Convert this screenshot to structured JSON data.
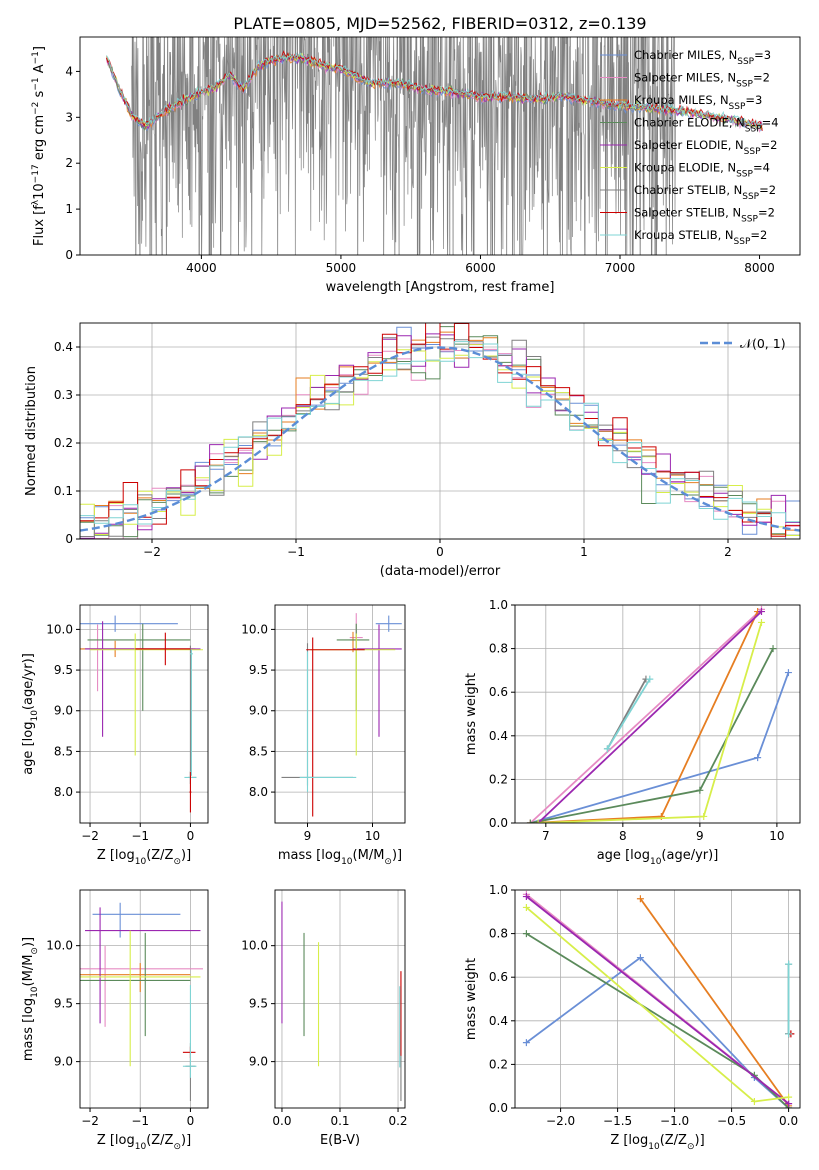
{
  "figure": {
    "title": "PLATE=0805, MJD=52562, FIBERID=0312, z=0.139"
  },
  "series_styles": [
    {
      "name_main": "Chabrier MILES, N",
      "sub": "SSP",
      "name_tail": "=3",
      "color": "#6a8fd6"
    },
    {
      "name_main": "Salpeter MILES, N",
      "sub": "SSP",
      "name_tail": "=2",
      "color": "#e68bc3"
    },
    {
      "name_main": "Kroupa MILES, N",
      "sub": "SSP",
      "name_tail": "=3",
      "color": "#e67e22"
    },
    {
      "name_main": "Chabrier ELODIE, N",
      "sub": "SSP",
      "name_tail": "=4",
      "color": "#5b8a5b"
    },
    {
      "name_main": "Salpeter ELODIE, N",
      "sub": "SSP",
      "name_tail": "=2",
      "color": "#9b27b0"
    },
    {
      "name_main": "Kroupa ELODIE, N",
      "sub": "SSP",
      "name_tail": "=4",
      "color": "#d7ee4a"
    },
    {
      "name_main": "Chabrier STELIB, N",
      "sub": "SSP",
      "name_tail": "=2",
      "color": "#808080"
    },
    {
      "name_main": "Salpeter STELIB, N",
      "sub": "SSP",
      "name_tail": "=2",
      "color": "#cc0000"
    },
    {
      "name_main": "Kroupa STELIB, N",
      "sub": "SSP",
      "name_tail": "=2",
      "color": "#7fd4d4"
    }
  ],
  "chart_data": [
    {
      "id": "spectrum",
      "type": "line",
      "xlabel": "wavelength [Angstrom, rest frame]",
      "ylabel_parts": [
        "Flux [f",
        "λ",
        "10",
        "−17",
        " erg cm",
        "−2",
        " s",
        "−1",
        " A",
        "−1",
        "]"
      ],
      "xlim": [
        3130,
        8290
      ],
      "ylim": [
        0,
        4.75
      ],
      "xticks": [
        4000,
        5000,
        6000,
        7000,
        8000
      ],
      "yticks": [
        0,
        1,
        2,
        3,
        4
      ],
      "data_color": "#808080",
      "data_range": [
        3500,
        7400
      ],
      "model_range": [
        3320,
        8020
      ],
      "model_shape": [
        [
          3320,
          4.3
        ],
        [
          3400,
          3.7
        ],
        [
          3500,
          3.05
        ],
        [
          3600,
          2.8
        ],
        [
          3700,
          3.05
        ],
        [
          3800,
          3.25
        ],
        [
          3900,
          3.4
        ],
        [
          4000,
          3.55
        ],
        [
          4100,
          3.65
        ],
        [
          4200,
          3.95
        ],
        [
          4300,
          3.6
        ],
        [
          4400,
          4.1
        ],
        [
          4500,
          4.25
        ],
        [
          4600,
          4.3
        ],
        [
          4700,
          4.3
        ],
        [
          4800,
          4.2
        ],
        [
          4900,
          4.1
        ],
        [
          5000,
          4.05
        ],
        [
          5200,
          3.75
        ],
        [
          5400,
          3.75
        ],
        [
          5600,
          3.6
        ],
        [
          5800,
          3.55
        ],
        [
          6000,
          3.45
        ],
        [
          6200,
          3.45
        ],
        [
          6400,
          3.4
        ],
        [
          6600,
          3.45
        ],
        [
          6800,
          3.35
        ],
        [
          7000,
          3.25
        ],
        [
          7200,
          3.2
        ],
        [
          7400,
          3.15
        ],
        [
          7600,
          3.05
        ],
        [
          7800,
          2.95
        ],
        [
          8020,
          2.8
        ]
      ]
    },
    {
      "id": "residuals",
      "type": "histogram",
      "xlabel": "(data-model)/error",
      "ylabel": "Normed distribution",
      "xlim": [
        -2.5,
        2.5
      ],
      "ylim": [
        0,
        0.45
      ],
      "xticks": [
        -2,
        -1,
        0,
        1,
        2
      ],
      "yticks": [
        0,
        0.1,
        0.2,
        0.3,
        0.4
      ],
      "bin_width": 0.1,
      "bin_start": -2.5,
      "series_amplitude": [
        1.0,
        0.98,
        1.01,
        0.99,
        1.02,
        0.97,
        1.0,
        1.03,
        0.96
      ],
      "gaussian_legend": "𝒩(0, 1)",
      "gaussian_color": "#5b8dd6"
    },
    {
      "id": "age-vs-Z",
      "type": "errorbar",
      "xlabel_parts": [
        "Z [log",
        "10",
        "(Z/Z",
        "⊙",
        ")]"
      ],
      "ylabel_parts": [
        "age  [log",
        "10",
        "(age/yr)]"
      ],
      "xlim": [
        -2.2,
        0.35
      ],
      "ylim": [
        7.62,
        10.3
      ],
      "xticks": [
        -2,
        -1,
        0
      ],
      "yticks": [
        8.0,
        8.5,
        9.0,
        9.5,
        10.0
      ],
      "points": [
        {
          "s": 0,
          "x": -1.5,
          "y": 10.07,
          "xerr": [
            0.75,
            1.25
          ],
          "yerr": [
            0.1,
            0.1
          ]
        },
        {
          "s": 1,
          "x": -1.85,
          "y": 9.76,
          "xerr": [
            0.3,
            1.9
          ],
          "yerr": [
            0.52,
            0.3
          ]
        },
        {
          "s": 2,
          "x": -1.5,
          "y": 9.76,
          "xerr": [
            0.7,
            1.6
          ],
          "yerr": [
            0.1,
            0.1
          ]
        },
        {
          "s": 3,
          "x": -0.95,
          "y": 9.87,
          "xerr": [
            1.1,
            0.95
          ],
          "yerr": [
            0.87,
            0.2
          ]
        },
        {
          "s": 4,
          "x": -1.75,
          "y": 9.76,
          "xerr": [
            0.35,
            1.95
          ],
          "yerr": [
            1.08,
            0.34
          ]
        },
        {
          "s": 5,
          "x": -1.1,
          "y": 9.75,
          "xerr": [
            0.9,
            1.35
          ],
          "yerr": [
            1.3,
            0.2
          ]
        },
        {
          "s": 6,
          "x": 0.0,
          "y": 8.18,
          "xerr": [
            0.05,
            0.12
          ],
          "yerr": [
            0.08,
            1.62
          ]
        },
        {
          "s": 7,
          "x": -0.5,
          "y": 9.76,
          "xerr": [
            0.6,
            0.5
          ],
          "yerr": [
            0.2,
            0.2
          ]
        },
        {
          "s": 8,
          "x": 0.0,
          "y": 8.18,
          "xerr": [
            0.12,
            0.12
          ],
          "yerr": [
            0.08,
            0.08
          ]
        },
        {
          "s": 7,
          "x": 0.0,
          "y": 8.0,
          "xerr": [
            0.02,
            0.02
          ],
          "yerr": [
            0.25,
            0.25
          ]
        },
        {
          "s": 8,
          "x": 0.02,
          "y": 9.7,
          "xerr": [
            0.03,
            0.03
          ],
          "yerr": [
            1.5,
            0.05
          ]
        }
      ]
    },
    {
      "id": "age-vs-mass",
      "type": "errorbar",
      "xlabel_parts": [
        "mass [log",
        "10",
        "(M/M",
        "⊙",
        ")]"
      ],
      "xlim": [
        8.5,
        10.5
      ],
      "ylim": [
        7.62,
        10.3
      ],
      "xticks": [
        9,
        10
      ],
      "yticks": [
        8.0,
        8.5,
        9.0,
        9.5,
        10.0
      ],
      "points": [
        {
          "s": 0,
          "x": 10.25,
          "y": 10.07,
          "xerr": [
            0.2,
            0.2
          ],
          "yerr": [
            0.1,
            0.1
          ]
        },
        {
          "s": 1,
          "x": 9.75,
          "y": 9.9,
          "xerr": [
            0.1,
            0.1
          ],
          "yerr": [
            0.15,
            0.3
          ]
        },
        {
          "s": 2,
          "x": 9.7,
          "y": 9.87,
          "xerr": [
            0.05,
            0.05
          ],
          "yerr": [
            0.15,
            0.1
          ]
        },
        {
          "s": 3,
          "x": 9.75,
          "y": 9.87,
          "xerr": [
            0.3,
            0.2
          ],
          "yerr": [
            0.87,
            0.2
          ]
        },
        {
          "s": 4,
          "x": 10.1,
          "y": 9.76,
          "xerr": [
            0.4,
            0.35
          ],
          "yerr": [
            1.08,
            0.3
          ]
        },
        {
          "s": 5,
          "x": 9.75,
          "y": 9.75,
          "xerr": [
            0.7,
            0.6
          ],
          "yerr": [
            1.3,
            0.2
          ]
        },
        {
          "s": 6,
          "x": 9.0,
          "y": 8.18,
          "xerr": [
            0.4,
            0.7
          ],
          "yerr": [
            0.1,
            1.65
          ]
        },
        {
          "s": 7,
          "x": 9.08,
          "y": 9.75,
          "xerr": [
            0.1,
            0.8
          ],
          "yerr": [
            2.05,
            0.15
          ]
        },
        {
          "s": 8,
          "x": 9.0,
          "y": 8.18,
          "xerr": [
            0.12,
            0.75
          ],
          "yerr": [
            0.18,
            1.55
          ]
        }
      ]
    },
    {
      "id": "mw-vs-age",
      "type": "line",
      "xlabel_parts": [
        "age  [log",
        "10",
        "(age/yr)]"
      ],
      "ylabel": "mass weight",
      "xlim": [
        6.6,
        10.3
      ],
      "ylim": [
        0,
        1.0
      ],
      "xticks": [
        7,
        8,
        9,
        10
      ],
      "yticks": [
        0.0,
        0.2,
        0.4,
        0.6,
        0.8,
        1.0
      ],
      "lines": [
        {
          "s": 0,
          "pts": [
            [
              6.8,
              0.0
            ],
            [
              9.75,
              0.3
            ],
            [
              10.15,
              0.69
            ]
          ]
        },
        {
          "s": 1,
          "pts": [
            [
              6.8,
              0.0
            ],
            [
              9.8,
              0.98
            ]
          ]
        },
        {
          "s": 2,
          "pts": [
            [
              6.8,
              0.0
            ],
            [
              8.5,
              0.03
            ],
            [
              9.75,
              0.97
            ]
          ]
        },
        {
          "s": 3,
          "pts": [
            [
              6.8,
              0.0
            ],
            [
              9.0,
              0.15
            ],
            [
              9.95,
              0.8
            ]
          ]
        },
        {
          "s": 4,
          "pts": [
            [
              6.9,
              0.0
            ],
            [
              9.8,
              0.97
            ]
          ]
        },
        {
          "s": 5,
          "pts": [
            [
              6.9,
              0.0
            ],
            [
              9.05,
              0.03
            ],
            [
              9.8,
              0.92
            ]
          ]
        },
        {
          "s": 6,
          "pts": [
            [
              7.8,
              0.34
            ],
            [
              8.3,
              0.66
            ]
          ]
        },
        {
          "s": 8,
          "pts": [
            [
              7.8,
              0.34
            ],
            [
              8.35,
              0.66
            ]
          ]
        }
      ]
    },
    {
      "id": "mass-vs-Z",
      "type": "errorbar",
      "xlabel_parts": [
        "Z [log",
        "10",
        "(Z/Z",
        "⊙",
        ")]"
      ],
      "ylabel_parts": [
        "mass [log",
        "10",
        "(M/M",
        "⊙",
        ")]"
      ],
      "xlim": [
        -2.2,
        0.35
      ],
      "ylim": [
        8.6,
        10.48
      ],
      "xticks": [
        -2,
        -1,
        0
      ],
      "yticks": [
        9.0,
        9.5,
        10.0
      ],
      "points": [
        {
          "s": 0,
          "x": -1.4,
          "y": 10.27,
          "xerr": [
            0.55,
            1.2
          ],
          "yerr": [
            0.2,
            0.1
          ]
        },
        {
          "s": 1,
          "x": -1.7,
          "y": 9.8,
          "xerr": [
            0.5,
            1.95
          ],
          "yerr": [
            0.5,
            0.2
          ]
        },
        {
          "s": 2,
          "x": -1.0,
          "y": 9.75,
          "xerr": [
            1.2,
            1.0
          ],
          "yerr": [
            0.15,
            0.1
          ]
        },
        {
          "s": 3,
          "x": -0.9,
          "y": 9.7,
          "xerr": [
            1.3,
            0.9
          ],
          "yerr": [
            0.48,
            0.41
          ]
        },
        {
          "s": 4,
          "x": -1.8,
          "y": 10.13,
          "xerr": [
            0.3,
            2.0
          ],
          "yerr": [
            0.8,
            0.2
          ]
        },
        {
          "s": 5,
          "x": -1.2,
          "y": 9.73,
          "xerr": [
            1.0,
            1.4
          ],
          "yerr": [
            0.77,
            0.4
          ]
        },
        {
          "s": 6,
          "x": 0.0,
          "y": 8.96,
          "xerr": [
            0.1,
            0.1
          ],
          "yerr": [
            0.3,
            0.2
          ]
        },
        {
          "s": 7,
          "x": 0.0,
          "y": 9.08,
          "xerr": [
            0.15,
            0.1
          ],
          "yerr": [
            0.05,
            0.05
          ]
        },
        {
          "s": 8,
          "x": 0.0,
          "y": 8.96,
          "xerr": [
            0.15,
            0.12
          ],
          "yerr": [
            0.1,
            0.7
          ]
        }
      ]
    },
    {
      "id": "mass-vs-ebv",
      "type": "errorbar",
      "xlabel": "E(B-V)",
      "xlim": [
        -0.012,
        0.212
      ],
      "ylim": [
        8.6,
        10.48
      ],
      "xticks": [
        0.0,
        0.1,
        0.2
      ],
      "yticks": [
        9.0,
        9.5,
        10.0
      ],
      "points": [
        {
          "s": 4,
          "x": 0.0,
          "y": 10.13,
          "xerr": [
            0,
            0
          ],
          "yerr": [
            0.8,
            0.25
          ]
        },
        {
          "s": 3,
          "x": 0.038,
          "y": 9.7,
          "xerr": [
            0,
            0
          ],
          "yerr": [
            0.48,
            0.41
          ]
        },
        {
          "s": 5,
          "x": 0.063,
          "y": 9.73,
          "xerr": [
            0,
            0
          ],
          "yerr": [
            0.77,
            0.3
          ]
        },
        {
          "s": 6,
          "x": 0.205,
          "y": 8.96,
          "xerr": [
            0,
            0
          ],
          "yerr": [
            0.3,
            0.3
          ]
        },
        {
          "s": 7,
          "x": 0.205,
          "y": 9.4,
          "xerr": [
            0,
            0
          ],
          "yerr": [
            0.35,
            0.38
          ]
        },
        {
          "s": 8,
          "x": 0.203,
          "y": 9.3,
          "xerr": [
            0,
            0
          ],
          "yerr": [
            0.35,
            0.35
          ]
        }
      ]
    },
    {
      "id": "mw-vs-Z",
      "type": "line",
      "xlabel_parts": [
        "Z [log",
        "10",
        "(Z/Z",
        "⊙",
        ")]"
      ],
      "ylabel": "mass weight",
      "xlim": [
        -2.4,
        0.1
      ],
      "ylim": [
        0,
        1.0
      ],
      "xticks": [
        -2.0,
        -1.5,
        -1.0,
        -0.5,
        0.0
      ],
      "yticks": [
        0.0,
        0.2,
        0.4,
        0.6,
        0.8,
        1.0
      ],
      "lines": [
        {
          "s": 0,
          "pts": [
            [
              -2.3,
              0.3
            ],
            [
              -1.3,
              0.69
            ],
            [
              -0.3,
              0.14
            ],
            [
              0.0,
              0.0
            ]
          ]
        },
        {
          "s": 1,
          "pts": [
            [
              -2.3,
              0.98
            ],
            [
              0.0,
              0.02
            ]
          ]
        },
        {
          "s": 2,
          "pts": [
            [
              -1.3,
              0.96
            ],
            [
              0.0,
              0.01
            ]
          ]
        },
        {
          "s": 3,
          "pts": [
            [
              -2.3,
              0.8
            ],
            [
              -0.3,
              0.15
            ],
            [
              0.0,
              0.0
            ]
          ]
        },
        {
          "s": 4,
          "pts": [
            [
              -2.3,
              0.97
            ],
            [
              0.0,
              0.02
            ]
          ]
        },
        {
          "s": 5,
          "pts": [
            [
              -2.3,
              0.92
            ],
            [
              -0.3,
              0.03
            ],
            [
              0.0,
              0.05
            ]
          ]
        },
        {
          "s": 6,
          "pts": [
            [
              0.0,
              0.34
            ],
            [
              0.0,
              0.66
            ]
          ]
        },
        {
          "s": 7,
          "pts": [
            [
              0.0,
              0.34
            ],
            [
              0.02,
              0.34
            ]
          ]
        },
        {
          "s": 8,
          "pts": [
            [
              0.0,
              0.34
            ],
            [
              0.0,
              0.66
            ]
          ]
        }
      ]
    }
  ]
}
